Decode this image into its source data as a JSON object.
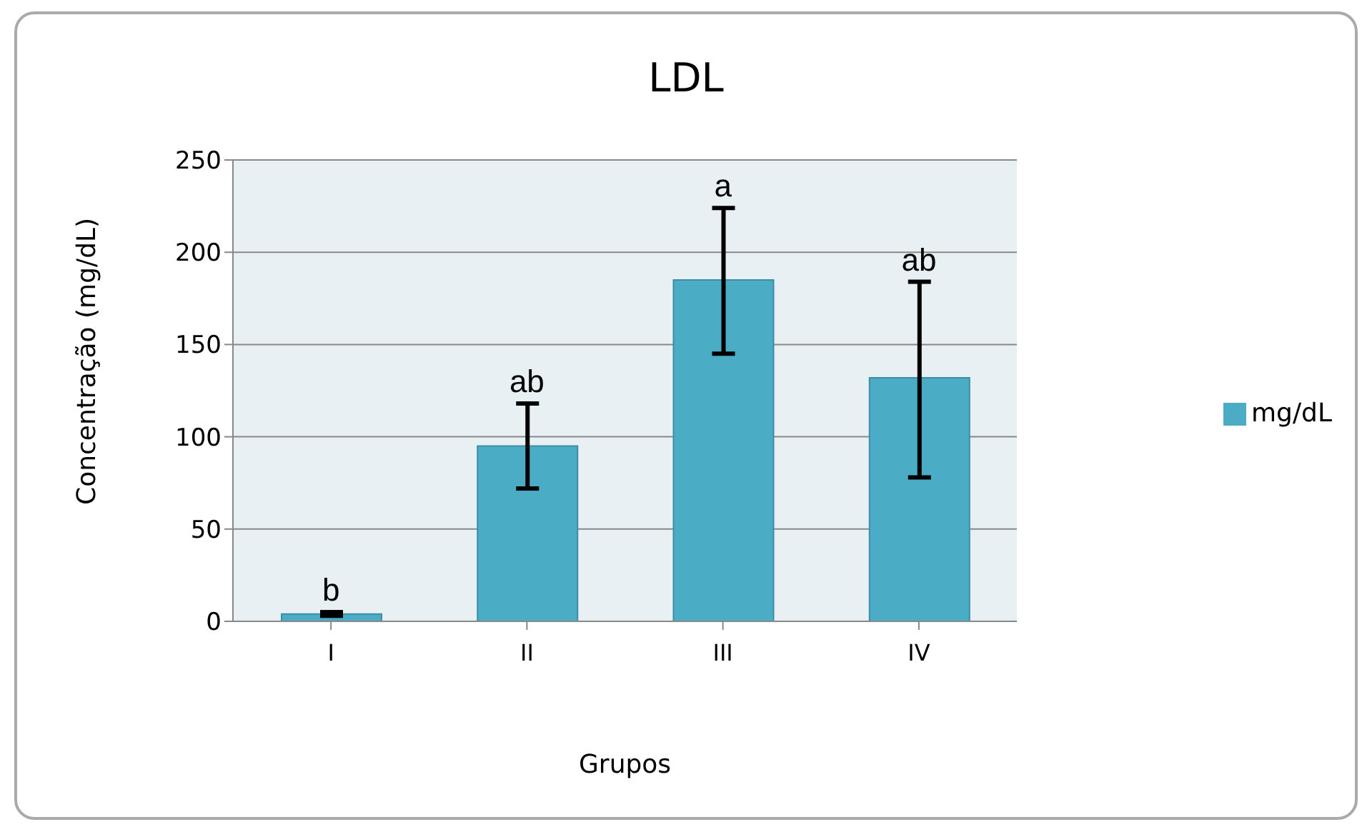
{
  "chart_data": {
    "type": "bar",
    "title": "LDL",
    "xlabel": "Grupos",
    "ylabel": "Concentração (mg/dL)",
    "categories": [
      "I",
      "II",
      "III",
      "IV"
    ],
    "series": [
      {
        "name": "mg/dL",
        "color": "#4bacc6",
        "values": [
          4,
          95,
          185,
          132
        ],
        "errors": [
          [
            3,
            5
          ],
          [
            72,
            118
          ],
          [
            145,
            224
          ],
          [
            78,
            184
          ]
        ]
      }
    ],
    "ylim": [
      0,
      250
    ],
    "yticks": [
      0,
      50,
      100,
      150,
      200,
      250
    ],
    "grid": "y",
    "legend": "right",
    "annotations": [
      {
        "text": "b",
        "x": "I",
        "y": 5
      },
      {
        "text": "ab",
        "x": "II",
        "y": 118
      },
      {
        "text": "a",
        "x": "III",
        "y": 224
      },
      {
        "text": "ab",
        "x": "IV",
        "y": 184
      }
    ]
  }
}
